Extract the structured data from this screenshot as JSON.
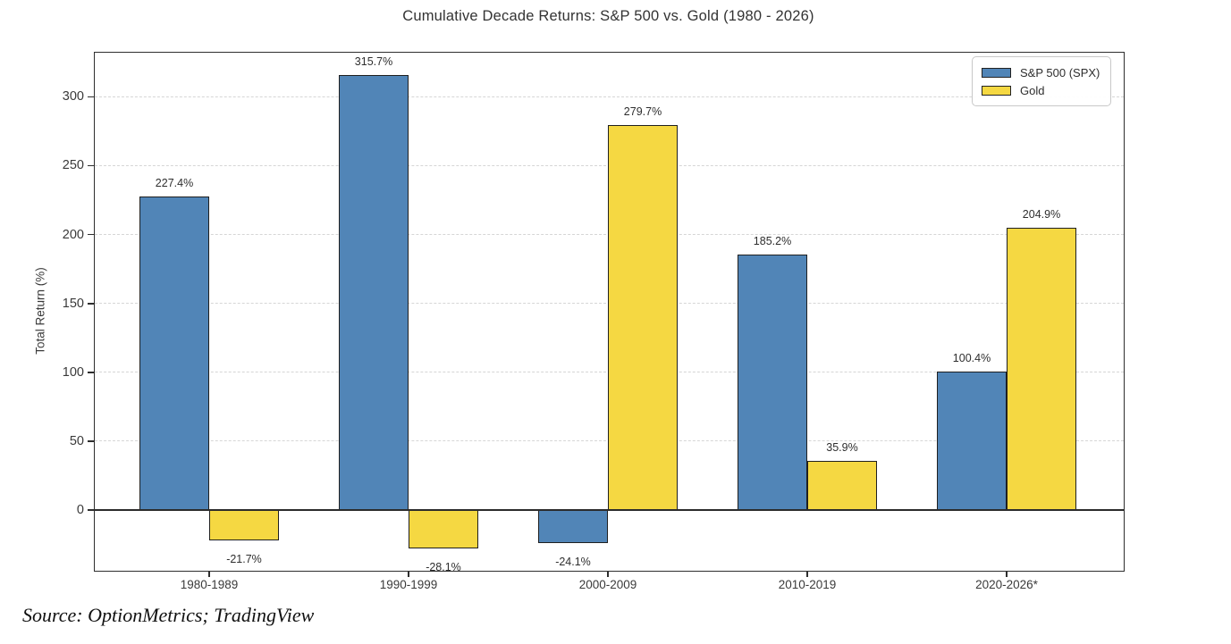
{
  "chart_data": {
    "type": "bar",
    "title": "Cumulative Decade Returns: S&P 500 vs. Gold (1980 - 2026)",
    "xlabel": "",
    "ylabel": "Total Return (%)",
    "categories": [
      "1980-1989",
      "1990-1999",
      "2000-2009",
      "2010-2019",
      "2020-2026*"
    ],
    "series": [
      {
        "name": "S&P 500 (SPX)",
        "color": "#5185b7",
        "values": [
          227.4,
          315.7,
          -24.1,
          185.2,
          100.4
        ],
        "labels": [
          "227.4%",
          "315.7%",
          "-24.1%",
          "185.2%",
          "100.4%"
        ]
      },
      {
        "name": "Gold",
        "color": "#f5d842",
        "values": [
          -21.7,
          -28.1,
          279.7,
          35.9,
          204.9
        ],
        "labels": [
          "-21.7%",
          "-28.1%",
          "279.7%",
          "35.9%",
          "204.9%"
        ]
      }
    ],
    "y_ticks": [
      0,
      50,
      100,
      150,
      200,
      250,
      300
    ],
    "ylim": [
      -44,
      332
    ],
    "grid": "horizontal-dashed",
    "legend_position": "top-right",
    "bar_edge_color": "#1f1f1f",
    "zero_line": true
  },
  "source_note": "Source: OptionMetrics; TradingView"
}
